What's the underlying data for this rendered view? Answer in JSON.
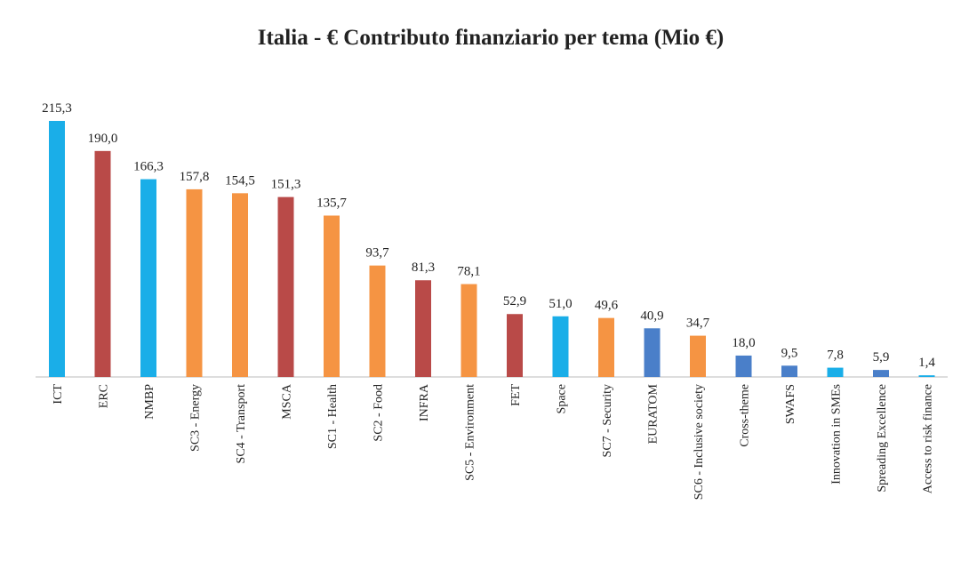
{
  "chart_data": {
    "type": "bar",
    "title": "Italia - € Contributo finanziario per tema (Mio €)",
    "categories": [
      "ICT",
      "ERC",
      "NMBP",
      "SC3 - Energy",
      "SC4 - Transport",
      "MSCA",
      "SC1 - Health",
      "SC2 - Food",
      "INFRA",
      "SC5 - Environment",
      "FET",
      "Space",
      "SC7 - Security",
      "EURATOM",
      "SC6 - Inclusive society",
      "Cross-theme",
      "SWAFS",
      "Innovation in SMEs",
      "Spreading Excellence",
      "Access to risk finance"
    ],
    "values": [
      215.3,
      190.0,
      166.3,
      157.8,
      154.5,
      151.3,
      135.7,
      93.7,
      81.3,
      78.1,
      52.9,
      51.0,
      49.6,
      40.9,
      34.7,
      18.0,
      9.5,
      7.8,
      5.9,
      1.4
    ],
    "value_labels": [
      "215,3",
      "190,0",
      "166,3",
      "157,8",
      "154,5",
      "151,3",
      "135,7",
      "93,7",
      "81,3",
      "78,1",
      "52,9",
      "51,0",
      "49,6",
      "40,9",
      "34,7",
      "18,0",
      "9,5",
      "7,8",
      "5,9",
      "1,4"
    ],
    "colors": [
      "#1aaee8",
      "#b94a48",
      "#1aaee8",
      "#f59443",
      "#f59443",
      "#b94a48",
      "#f59443",
      "#f59443",
      "#b94a48",
      "#f59443",
      "#b94a48",
      "#1aaee8",
      "#f59443",
      "#4a7fc9",
      "#f59443",
      "#4a7fc9",
      "#4a7fc9",
      "#1aaee8",
      "#4a7fc9",
      "#1aaee8"
    ]
  }
}
